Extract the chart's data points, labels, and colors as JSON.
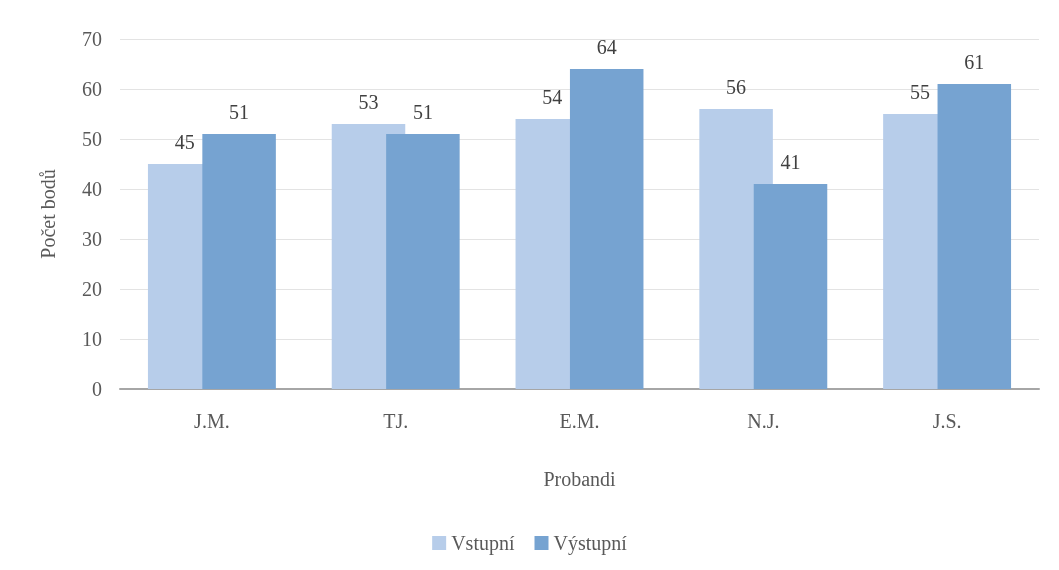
{
  "chart_data": {
    "type": "bar",
    "xlabel": "Probandi",
    "ylabel": "Počet bodů",
    "categories": [
      "J.M.",
      "TJ.",
      "E.M.",
      "N.J.",
      "J.S."
    ],
    "series": [
      {
        "name": "Vstupní",
        "color": "#b7cdea",
        "values": [
          45,
          53,
          54,
          56,
          55
        ]
      },
      {
        "name": "Výstupní",
        "color": "#76a3d1",
        "values": [
          51,
          51,
          64,
          41,
          61
        ]
      }
    ],
    "ylim": [
      0,
      70
    ],
    "yticks": [
      0,
      10,
      20,
      30,
      40,
      50,
      60,
      70
    ],
    "grid": "y",
    "legend": "bottom",
    "data_labels": true
  }
}
